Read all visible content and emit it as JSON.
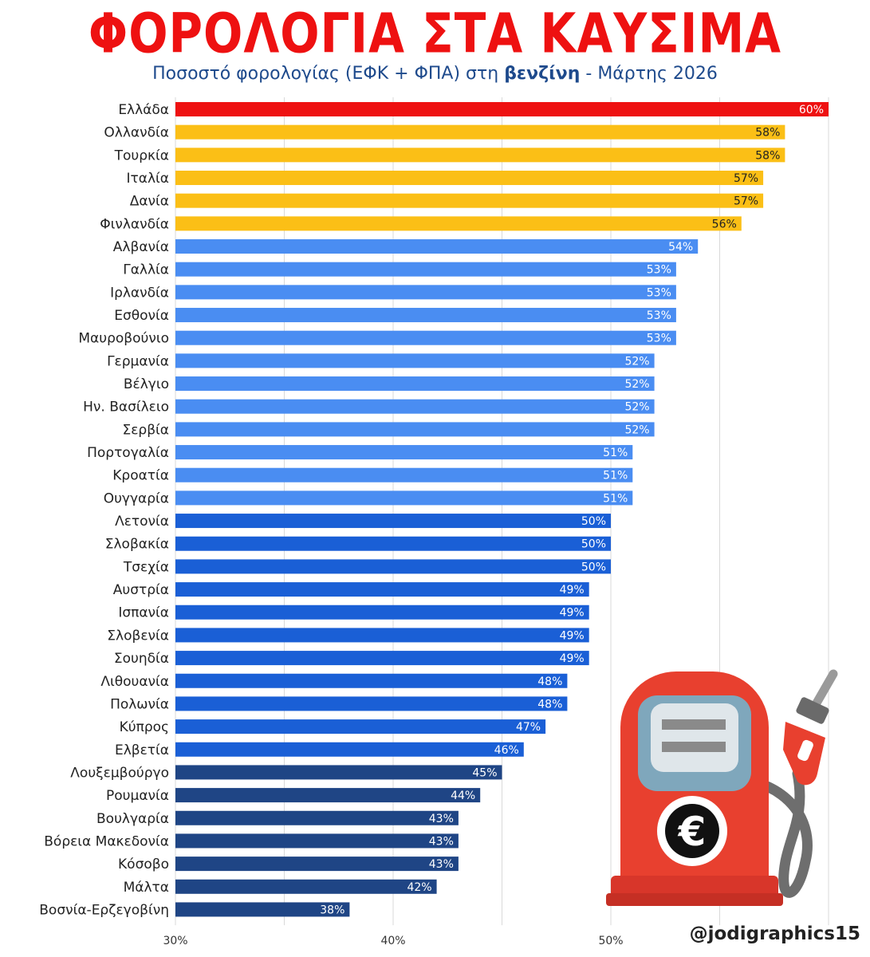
{
  "header": {
    "title": "ΦΟΡΟΛΟΓΙΑ ΣΤΑ ΚΑΥΣΙΜΑ",
    "subtitle_pre": "Ποσοστό φορολογίας (ΕΦΚ + ΦΠΑ) στη ",
    "subtitle_bold": "βενζίνη",
    "subtitle_post": " - Μάρτης 2026"
  },
  "watermark": "@jodigraphics15",
  "colors": {
    "top": "#ee1111",
    "yellow": "#fbbf16",
    "light_blue": "#4a8df2",
    "mid_blue": "#1a5fd6",
    "dark_blue": "#1f4585",
    "gridline": "#d9d9d9",
    "label_text": "#222222"
  },
  "chart_data": {
    "type": "bar",
    "orientation": "horizontal",
    "title": "ΦΟΡΟΛΟΓΙΑ ΣΤΑ ΚΑΥΣΙΜΑ",
    "subtitle": "Ποσοστό φορολογίας (ΕΦΚ + ΦΠΑ) στη βενζίνη - Μάρτης 2026",
    "xlim": [
      30,
      60
    ],
    "xticks": [
      30,
      40,
      50
    ],
    "xtick_labels": [
      "30%",
      "40%",
      "50%"
    ],
    "grid": true,
    "categories": [
      "Ελλάδα",
      "Ολλανδία",
      "Τουρκία",
      "Ιταλία",
      "Δανία",
      "Φινλανδία",
      "Αλβανία",
      "Γαλλία",
      "Ιρλανδία",
      "Εσθονία",
      "Μαυροβούνιο",
      "Γερμανία",
      "Βέλγιο",
      "Ην. Βασίλειο",
      "Σερβία",
      "Πορτογαλία",
      "Κροατία",
      "Ουγγαρία",
      "Λετονία",
      "Σλοβακία",
      "Τσεχία",
      "Αυστρία",
      "Ισπανία",
      "Σλοβενία",
      "Σουηδία",
      "Λιθουανία",
      "Πολωνία",
      "Κύπρος",
      "Ελβετία",
      "Λουξεμβούργο",
      "Ρουμανία",
      "Βουλγαρία",
      "Βόρεια Μακεδονία",
      "Κόσοβο",
      "Μάλτα",
      "Βοσνία-Ερζεγοβίνη"
    ],
    "values": [
      60,
      58,
      58,
      57,
      57,
      56,
      54,
      53,
      53,
      53,
      53,
      52,
      52,
      52,
      52,
      51,
      51,
      51,
      50,
      50,
      50,
      49,
      49,
      49,
      49,
      48,
      48,
      47,
      46,
      45,
      44,
      43,
      43,
      43,
      42,
      38
    ],
    "value_labels": [
      "60%",
      "58%",
      "58%",
      "57%",
      "57%",
      "56%",
      "54%",
      "53%",
      "53%",
      "53%",
      "53%",
      "52%",
      "52%",
      "52%",
      "52%",
      "51%",
      "51%",
      "51%",
      "50%",
      "50%",
      "50%",
      "49%",
      "49%",
      "49%",
      "49%",
      "48%",
      "48%",
      "47%",
      "46%",
      "45%",
      "44%",
      "43%",
      "43%",
      "43%",
      "42%",
      "38%"
    ],
    "bar_color_groups": [
      "top",
      "yellow",
      "yellow",
      "yellow",
      "yellow",
      "yellow",
      "light_blue",
      "light_blue",
      "light_blue",
      "light_blue",
      "light_blue",
      "light_blue",
      "light_blue",
      "light_blue",
      "light_blue",
      "light_blue",
      "light_blue",
      "light_blue",
      "mid_blue",
      "mid_blue",
      "mid_blue",
      "mid_blue",
      "mid_blue",
      "mid_blue",
      "mid_blue",
      "mid_blue",
      "mid_blue",
      "mid_blue",
      "mid_blue",
      "dark_blue",
      "dark_blue",
      "dark_blue",
      "dark_blue",
      "dark_blue",
      "dark_blue",
      "dark_blue"
    ]
  },
  "illustration": {
    "icon": "fuel-pump-icon",
    "symbol": "€"
  }
}
